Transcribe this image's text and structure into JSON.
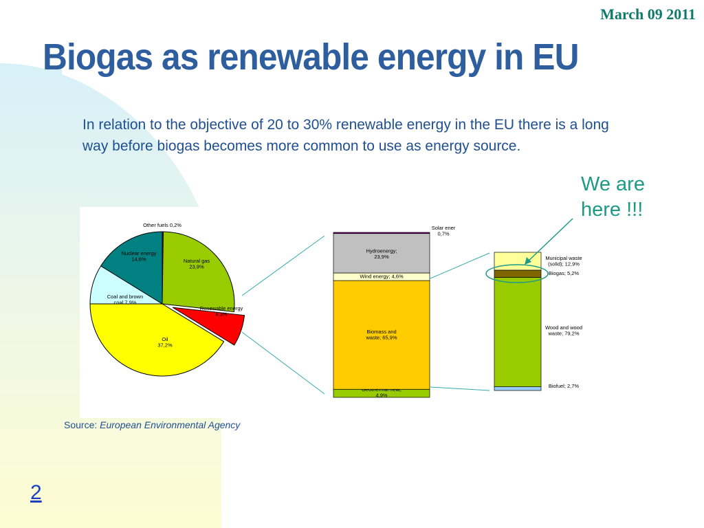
{
  "slide": {
    "date": "March 09 2011",
    "title": "Biogas as renewable energy in EU",
    "intro": "In relation to the objective of 20 to 30% renewable energy in the EU there is a long way before biogas becomes more common to use as energy source.",
    "callout": [
      "We are",
      "here !!!"
    ],
    "source_prefix": "Source: ",
    "source_name": "European Environmental Agency",
    "page_number": "2"
  },
  "chart_data": [
    {
      "type": "pie",
      "slices": [
        {
          "label": "Other fuels 0,2%",
          "lines": [
            "Other fuels 0,2%"
          ],
          "value": 0.2,
          "color": "#800080"
        },
        {
          "label": "Natural gas 23,9%",
          "lines": [
            "Natural gas",
            "23,9%"
          ],
          "value": 23.9,
          "color": "#99cc00"
        },
        {
          "label": "Renewable energy 6,3%",
          "lines": [
            "Renewable energy",
            "6,3%"
          ],
          "value": 6.3,
          "color": "#ff0000",
          "exploded": true
        },
        {
          "label": "Oil 37,2%",
          "lines": [
            "Oil",
            "37,2%"
          ],
          "value": 37.2,
          "color": "#ffff00"
        },
        {
          "label": "Coal and brown coal 7,9%",
          "lines": [
            "Coal and brown",
            "coal 7,9%"
          ],
          "value": 7.9,
          "color": "#ccffff"
        },
        {
          "label": "Nuclear energy 14,6%",
          "lines": [
            "Nuclear energy",
            "14,6%"
          ],
          "value": 14.6,
          "color": "#008080"
        }
      ]
    },
    {
      "type": "bar",
      "stacked": true,
      "segments": [
        {
          "label": "Geothermal heat; 4,9%",
          "lines": [
            "Geothermal heat;",
            "4,9%"
          ],
          "value": 4.9,
          "color": "#99cc00"
        },
        {
          "label": "Biomass and waste; 65,9%",
          "lines": [
            "Biomass and",
            "waste; 65,9%"
          ],
          "value": 65.9,
          "color": "#ffcc00"
        },
        {
          "label": "Wind energy; 4,6%",
          "lines": [
            "Wind energy; 4,6%"
          ],
          "value": 4.6,
          "color": "#ffffcc"
        },
        {
          "label": "Hydroenergy; 23,9%",
          "lines": [
            "Hydroenergy;",
            "23,9%"
          ],
          "value": 23.9,
          "color": "#c0c0c0"
        },
        {
          "label": "Solar ener 0,7%",
          "lines": [
            "Solar ener",
            "0,7%"
          ],
          "value": 0.7,
          "color": "#800080"
        }
      ]
    },
    {
      "type": "bar",
      "stacked": true,
      "segments": [
        {
          "label": "Biofuel; 2,7%",
          "lines": [
            "Biofuel; 2,7%"
          ],
          "value": 2.7,
          "color": "#99ccff"
        },
        {
          "label": "Wood and wood waste; 79,2%",
          "lines": [
            "Wood and wood",
            "waste; 79,2%"
          ],
          "value": 79.2,
          "color": "#99cc00"
        },
        {
          "label": "Biogas; 5,2%",
          "lines": [
            "Biogas; 5,2%"
          ],
          "value": 5.2,
          "color": "#806600"
        },
        {
          "label": "Municipal waste (solid); 12,9%",
          "lines": [
            "Municipal waste",
            "(solid); 12,9%"
          ],
          "value": 12.9,
          "color": "#ffff99"
        }
      ]
    }
  ],
  "colors": {
    "background_circle": "#cfe9fb",
    "background_band": "#fefcd2",
    "title": "#2e5e9e",
    "date": "#0f7a6a",
    "callout": "#1c9a86",
    "connector": "#33aaaa"
  }
}
